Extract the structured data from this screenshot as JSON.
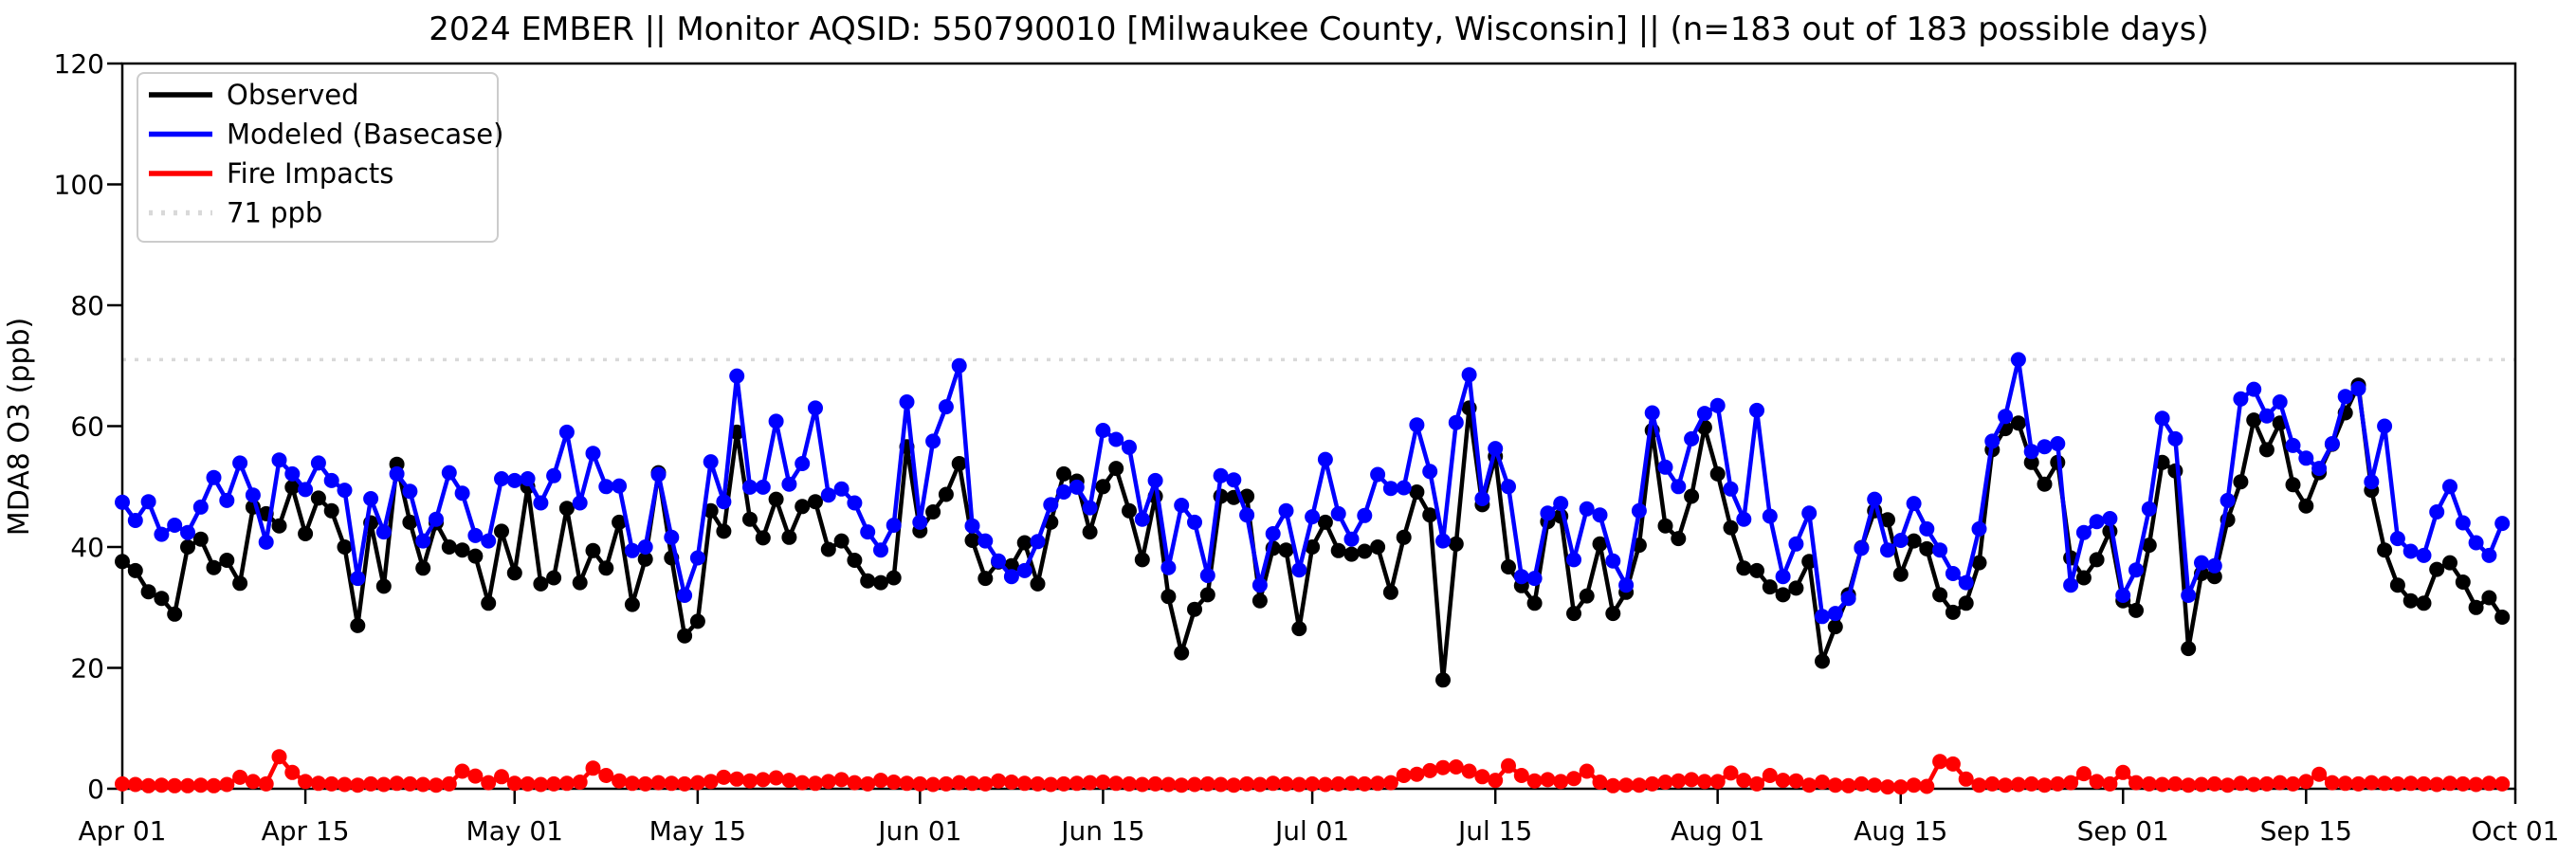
{
  "title": "2024 EMBER || Monitor AQSID: 550790010 [Milwaukee County, Wisconsin] || (n=183 out of 183 possible days)",
  "chart_data": {
    "type": "line",
    "title": "2024 EMBER || Monitor AQSID: 550790010 [Milwaukee County, Wisconsin] || (n=183 out of 183 possible days)",
    "xlabel": "",
    "ylabel": "MDA8 O3 (ppb)",
    "ylim": [
      0,
      120
    ],
    "yticks": [
      0,
      20,
      40,
      60,
      80,
      100,
      120
    ],
    "x_unit": "day",
    "x_start_label": "Apr 01",
    "x_end_label": "Oct 01",
    "n_days": 183,
    "grid": false,
    "legend_position": "upper-left",
    "background": "#ffffff",
    "xticks": [
      {
        "day": 1,
        "label": "Apr 01"
      },
      {
        "day": 15,
        "label": "Apr 15"
      },
      {
        "day": 31,
        "label": "May 01"
      },
      {
        "day": 45,
        "label": "May 15"
      },
      {
        "day": 62,
        "label": "Jun 01"
      },
      {
        "day": 76,
        "label": "Jun 15"
      },
      {
        "day": 92,
        "label": "Jul 01"
      },
      {
        "day": 106,
        "label": "Jul 15"
      },
      {
        "day": 123,
        "label": "Aug 01"
      },
      {
        "day": 137,
        "label": "Aug 15"
      },
      {
        "day": 154,
        "label": "Sep 01"
      },
      {
        "day": 168,
        "label": "Sep 15"
      },
      {
        "day": 184,
        "label": "Oct 01"
      }
    ],
    "threshold": {
      "value": 71,
      "label": "71 ppb",
      "color": "#d9d9d9",
      "style": "dotted"
    },
    "series": [
      {
        "name": "Observed",
        "color": "#000000",
        "values": [
          37.6,
          36.1,
          32.6,
          31.5,
          28.9,
          40.0,
          41.3,
          36.6,
          37.8,
          34.0,
          46.6,
          45.5,
          43.5,
          49.9,
          42.2,
          48.1,
          46.0,
          40.0,
          27.0,
          44.0,
          33.5,
          53.7,
          44.1,
          36.5,
          44.0,
          40.0,
          39.5,
          38.5,
          30.7,
          42.6,
          35.7,
          50.0,
          33.9,
          34.9,
          46.4,
          34.1,
          39.4,
          36.5,
          44.1,
          30.5,
          38.0,
          52.3,
          38.2,
          25.3,
          27.7,
          46.0,
          42.6,
          59.0,
          44.6,
          41.5,
          47.9,
          41.6,
          46.7,
          47.5,
          39.6,
          41.0,
          37.8,
          34.4,
          34.1,
          34.9,
          56.6,
          42.7,
          45.8,
          48.7,
          53.8,
          41.1,
          34.8,
          37.5,
          36.9,
          40.7,
          33.9,
          44.1,
          52.1,
          50.9,
          42.5,
          50.0,
          53.0,
          46.0,
          37.9,
          48.4,
          31.8,
          22.5,
          29.7,
          32.1,
          48.4,
          48.2,
          48.4,
          31.1,
          39.8,
          39.5,
          26.5,
          40.0,
          44.1,
          39.4,
          38.8,
          39.3,
          40.0,
          32.5,
          41.6,
          49.1,
          45.3,
          18.0,
          40.5,
          63.0,
          47.0,
          55.0,
          36.7,
          33.6,
          30.7,
          44.2,
          45.1,
          29.0,
          31.9,
          40.5,
          29.0,
          32.5,
          40.3,
          59.3,
          43.5,
          41.4,
          48.4,
          59.8,
          52.1,
          43.2,
          36.5,
          36.1,
          33.4,
          32.1,
          33.2,
          37.6,
          21.1,
          26.8,
          32.1,
          39.9,
          46.0,
          44.5,
          35.5,
          41.0,
          39.7,
          32.1,
          29.2,
          30.7,
          37.4,
          56.1,
          59.6,
          60.5,
          54.0,
          50.4,
          54.0,
          38.2,
          34.9,
          37.9,
          42.6,
          31.1,
          29.5,
          40.3,
          54.0,
          52.6,
          23.2,
          35.6,
          35.1,
          44.5,
          50.8,
          61.0,
          56.1,
          60.5,
          50.3,
          46.8,
          52.3,
          57.0,
          62.2,
          66.8,
          49.4,
          39.5,
          33.7,
          31.1,
          30.7,
          36.3,
          37.4,
          34.2,
          30.0,
          31.6,
          28.4
        ]
      },
      {
        "name": "Modeled (Basecase)",
        "color": "#0000ff",
        "values": [
          47.4,
          44.4,
          47.5,
          42.1,
          43.6,
          42.4,
          46.6,
          51.5,
          47.7,
          53.9,
          48.6,
          40.8,
          54.4,
          52.1,
          49.5,
          53.9,
          51.0,
          49.4,
          34.8,
          48.0,
          42.5,
          52.1,
          49.2,
          41.0,
          44.6,
          52.3,
          48.9,
          41.9,
          41.0,
          51.3,
          51.0,
          51.3,
          47.3,
          51.8,
          59.0,
          47.3,
          55.5,
          50.0,
          50.1,
          39.4,
          40.0,
          52.0,
          41.6,
          32.0,
          38.2,
          54.1,
          47.5,
          68.3,
          49.9,
          49.9,
          60.8,
          50.4,
          53.8,
          63.0,
          48.6,
          49.6,
          47.3,
          42.5,
          39.5,
          43.6,
          64.0,
          44.1,
          57.5,
          63.2,
          70.0,
          43.5,
          41.0,
          37.7,
          35.1,
          36.1,
          40.9,
          47.0,
          49.1,
          49.9,
          46.5,
          59.3,
          57.8,
          56.5,
          44.6,
          51.0,
          36.6,
          46.9,
          44.1,
          35.3,
          51.8,
          51.1,
          45.3,
          33.7,
          42.2,
          46.0,
          36.2,
          45.0,
          54.5,
          45.5,
          41.3,
          45.2,
          52.0,
          49.7,
          49.8,
          60.2,
          52.5,
          41.0,
          60.6,
          68.5,
          48.0,
          56.3,
          50.0,
          35.1,
          34.8,
          45.6,
          47.2,
          37.9,
          46.3,
          45.3,
          37.7,
          33.7,
          46.0,
          62.2,
          53.2,
          50.0,
          57.9,
          62.1,
          63.4,
          49.6,
          44.6,
          62.6,
          45.1,
          35.1,
          40.5,
          45.6,
          28.5,
          29.0,
          31.5,
          39.8,
          47.9,
          39.5,
          41.1,
          47.2,
          43.0,
          39.5,
          35.6,
          34.1,
          43.0,
          57.5,
          61.6,
          71.0,
          55.8,
          56.6,
          57.1,
          33.7,
          42.4,
          44.2,
          44.7,
          32.0,
          36.2,
          46.3,
          61.3,
          57.9,
          32.0,
          37.4,
          36.9,
          47.7,
          64.5,
          66.1,
          61.7,
          64.0,
          56.8,
          54.7,
          53.0,
          57.1,
          64.9,
          66.2,
          50.8,
          60.0,
          41.4,
          39.3,
          38.6,
          45.8,
          50.0,
          44.0,
          40.7,
          38.6,
          43.9
        ]
      },
      {
        "name": "Fire Impacts",
        "color": "#ff0000",
        "values": [
          0.8,
          0.7,
          0.5,
          0.6,
          0.5,
          0.5,
          0.6,
          0.5,
          0.7,
          1.9,
          1.2,
          0.8,
          5.3,
          2.7,
          1.2,
          0.9,
          0.8,
          0.7,
          0.6,
          0.8,
          0.7,
          0.9,
          0.8,
          0.7,
          0.6,
          0.8,
          2.9,
          2.1,
          1.0,
          2.0,
          0.9,
          0.8,
          0.7,
          0.8,
          0.9,
          1.1,
          3.4,
          2.2,
          1.3,
          0.9,
          0.8,
          1.0,
          0.9,
          0.8,
          1.0,
          1.2,
          1.9,
          1.6,
          1.3,
          1.5,
          1.8,
          1.4,
          1.0,
          0.9,
          1.2,
          1.5,
          1.0,
          0.8,
          1.4,
          1.1,
          0.9,
          0.8,
          0.7,
          0.8,
          1.0,
          0.9,
          0.8,
          1.3,
          1.1,
          0.9,
          0.8,
          0.7,
          0.8,
          0.9,
          1.0,
          1.1,
          0.9,
          0.8,
          0.7,
          0.8,
          0.7,
          0.6,
          0.7,
          0.8,
          0.7,
          0.6,
          0.8,
          0.7,
          0.9,
          0.8,
          0.7,
          0.8,
          0.7,
          0.8,
          0.9,
          0.8,
          0.9,
          1.0,
          2.2,
          2.4,
          3.0,
          3.5,
          3.6,
          2.9,
          2.0,
          1.4,
          3.8,
          2.2,
          1.3,
          1.5,
          1.2,
          1.7,
          2.9,
          1.1,
          0.5,
          0.6,
          0.6,
          0.8,
          1.1,
          1.3,
          1.5,
          1.2,
          1.2,
          2.6,
          1.4,
          0.8,
          2.2,
          1.4,
          1.3,
          0.6,
          1.1,
          0.6,
          0.5,
          0.8,
          0.6,
          0.3,
          0.3,
          0.6,
          0.4,
          4.5,
          4.1,
          1.6,
          0.6,
          0.8,
          0.6,
          0.7,
          0.8,
          0.6,
          0.8,
          1.0,
          2.5,
          1.2,
          0.8,
          2.7,
          1.0,
          0.8,
          0.7,
          0.8,
          0.6,
          0.7,
          0.8,
          0.6,
          0.9,
          0.7,
          0.8,
          1.0,
          0.8,
          1.2,
          2.4,
          1.0,
          0.9,
          0.8,
          1.0,
          0.9,
          0.8,
          0.9,
          0.8,
          0.7,
          0.9,
          0.8,
          0.7,
          0.9,
          0.8
        ]
      }
    ],
    "legend_entries": [
      "Observed",
      "Modeled (Basecase)",
      "Fire Impacts",
      "71 ppb"
    ]
  }
}
